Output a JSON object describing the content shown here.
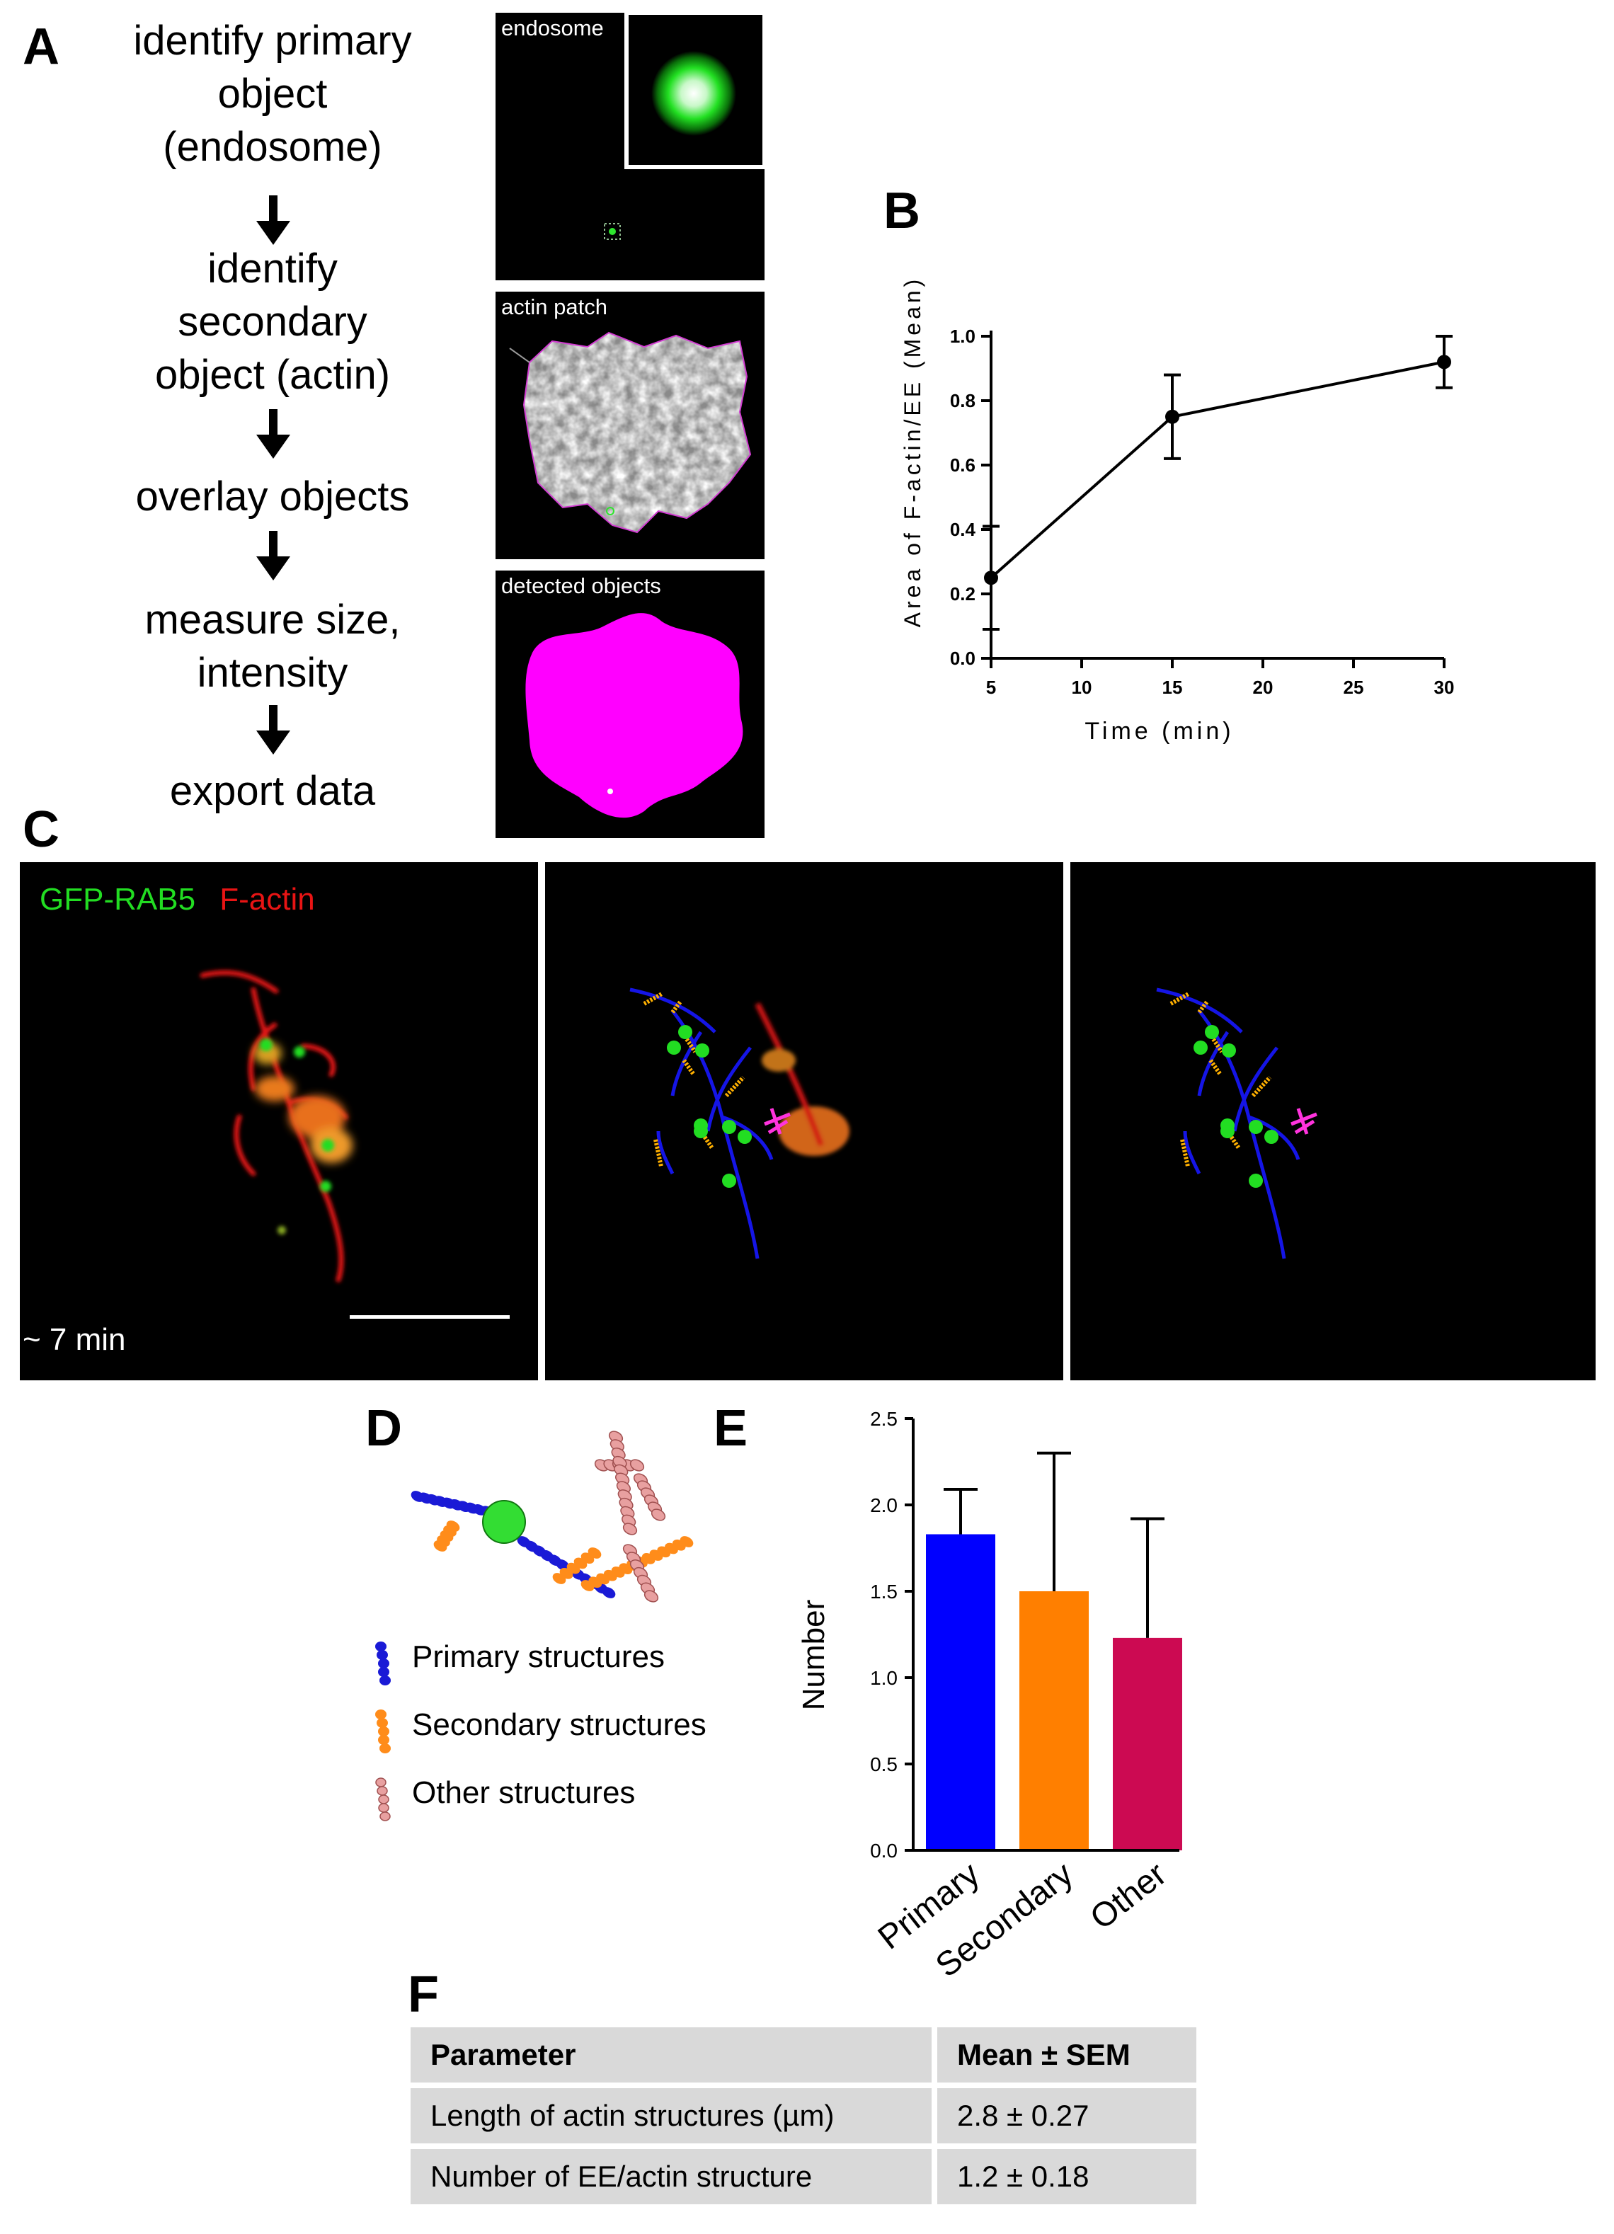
{
  "panel_letters": {
    "a": "A",
    "b": "B",
    "c": "C",
    "d": "D",
    "e": "E",
    "f": "F"
  },
  "panel_a": {
    "steps": [
      "identify primary object (endosome)",
      "identify secondary object (actin)",
      "overlay objects",
      "measure size, intensity",
      "export data"
    ],
    "step_lines": [
      [
        "identify primary",
        "object",
        "(endosome)"
      ],
      [
        "identify",
        "secondary",
        "object (actin)"
      ],
      [
        "overlay objects"
      ],
      [
        "measure size,",
        "intensity"
      ],
      [
        "export data"
      ]
    ],
    "image_labels": [
      "endosome",
      "actin patch",
      "detected objects"
    ],
    "colors": {
      "endosome": "#2ee62e",
      "outline": "#d23cd2",
      "detected": "#ff00ff"
    }
  },
  "panel_b": {
    "chart_data": {
      "type": "line",
      "x": [
        5,
        15,
        30
      ],
      "y": [
        0.25,
        0.75,
        0.92
      ],
      "error": [
        0.16,
        0.13,
        0.08
      ],
      "xlabel": "Time (min)",
      "ylabel": "Area of F-actin/EE (Mean)",
      "xticks": [
        5,
        10,
        15,
        20,
        25,
        30
      ],
      "yticks": [
        0.0,
        0.2,
        0.4,
        0.6,
        0.8,
        1.0
      ],
      "xlim": [
        5,
        30
      ],
      "ylim": [
        0,
        1.0
      ],
      "grid": false
    }
  },
  "panel_c": {
    "label_green": "GFP-RAB5",
    "label_red": "F-actin",
    "time_label": "~ 7 min",
    "colors": {
      "green": "#22dd22",
      "red": "#e81414",
      "primary": "#1515e6",
      "secondary": "#ffb000",
      "other": "#ff33dd"
    }
  },
  "panel_d": {
    "legend": [
      "Primary structures",
      "Secondary structures",
      "Other structures"
    ],
    "colors": {
      "primary": "#1a1ad6",
      "secondary": "#ff8c1a",
      "other": "#e8a0a0",
      "endosome": "#33dd33"
    }
  },
  "panel_e": {
    "chart_data": {
      "type": "bar",
      "categories": [
        "Primary",
        "Secondary",
        "Other"
      ],
      "values": [
        1.83,
        1.5,
        1.23
      ],
      "error": [
        0.26,
        0.8,
        0.69
      ],
      "ylabel": "Number",
      "yticks": [
        0.0,
        0.5,
        1.0,
        1.5,
        2.0,
        2.5
      ],
      "ylim": [
        0,
        2.5
      ],
      "colors": [
        "#0000ff",
        "#ff7f00",
        "#cc0a52"
      ],
      "grid": false
    }
  },
  "panel_f": {
    "headers": [
      "Parameter",
      "Mean ± SEM"
    ],
    "rows": [
      [
        "Length of actin structures (µm)",
        "2.8 ± 0.27"
      ],
      [
        "Number of EE/actin structure",
        "1.2 ± 0.18"
      ]
    ]
  }
}
